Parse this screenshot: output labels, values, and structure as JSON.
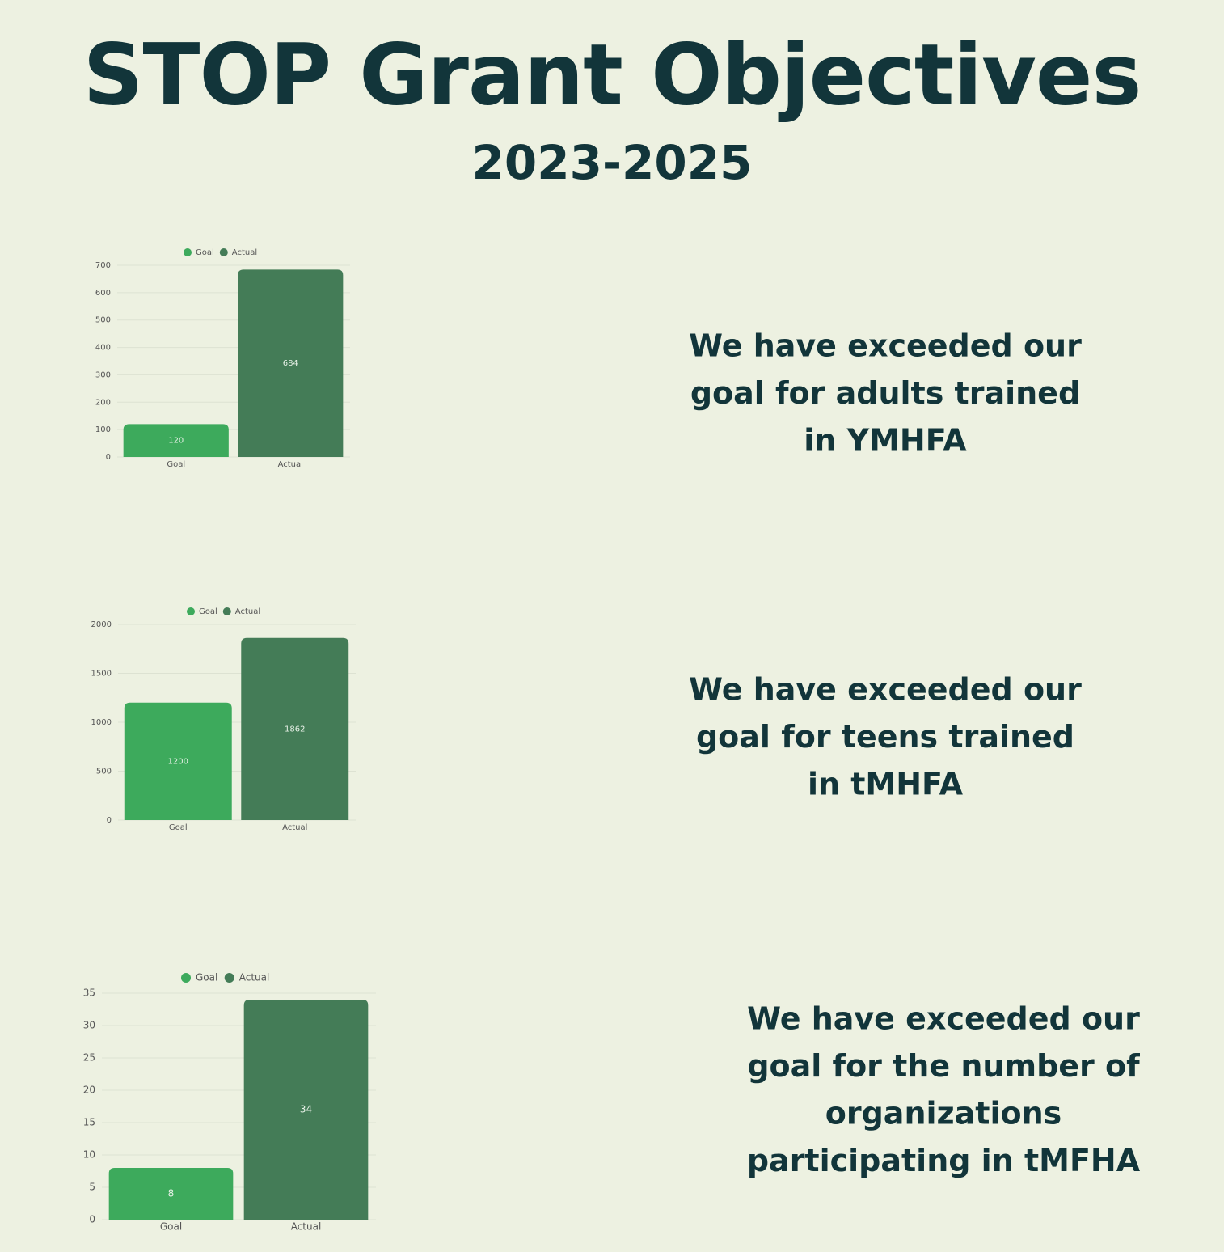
{
  "title": "STOP Grant Objectives",
  "subtitle": "2023-2025",
  "statements": [
    [
      "We have exceeded our",
      "goal for adults trained",
      "in YMHFA"
    ],
    [
      "We have exceeded our",
      "goal for teens trained",
      "in tMHFA"
    ],
    [
      "We have exceeded our",
      "goal for the number of",
      "organizations",
      "participating in tMFHA"
    ]
  ],
  "chart_data": [
    {
      "type": "bar",
      "categories": [
        "Goal",
        "Actual"
      ],
      "values": [
        120,
        684
      ],
      "colors": [
        "#3daa5c",
        "#447c57"
      ],
      "ylim": [
        0,
        700
      ],
      "yticks": [
        0,
        100,
        200,
        300,
        400,
        500,
        600,
        700
      ],
      "grid": true,
      "legend": "top"
    },
    {
      "type": "bar",
      "categories": [
        "Goal",
        "Actual"
      ],
      "values": [
        1200,
        1862
      ],
      "colors": [
        "#3daa5c",
        "#447c57"
      ],
      "ylim": [
        0,
        2000
      ],
      "yticks": [
        0,
        500,
        1000,
        1500,
        2000
      ],
      "grid": true,
      "legend": "top"
    },
    {
      "type": "bar",
      "categories": [
        "Goal",
        "Actual"
      ],
      "values": [
        8,
        34
      ],
      "colors": [
        "#3daa5c",
        "#447c57"
      ],
      "ylim": [
        0,
        35
      ],
      "yticks": [
        0,
        5,
        10,
        15,
        20,
        25,
        30,
        35
      ],
      "grid": true,
      "legend": "top"
    }
  ]
}
